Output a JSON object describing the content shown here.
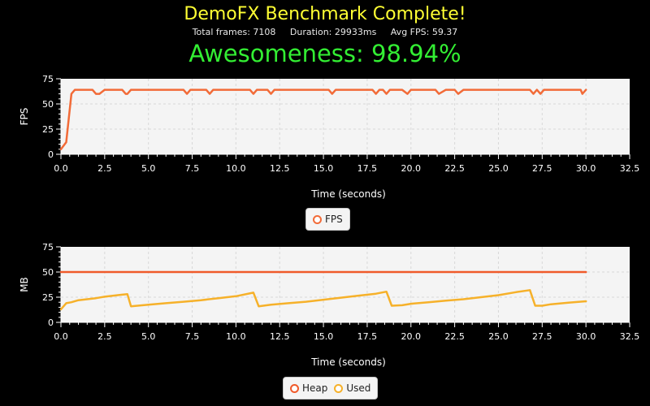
{
  "header": {
    "title": "DemoFX Benchmark Complete!",
    "stats": "Total frames: 7108     Duration: 29933ms     Avg FPS: 59.37",
    "awesomeness": "Awesomeness: 98.94%"
  },
  "colors": {
    "fps": "#f26b38",
    "heap": "#f05a2a",
    "used": "#f6b12a",
    "plot_bg": "#f4f4f4",
    "grid": "#d8d8d8",
    "title": "#ffff33",
    "score": "#33ee33"
  },
  "chart_data": [
    {
      "type": "line",
      "xlabel": "Time (seconds)",
      "ylabel": "FPS",
      "xlim": [
        0,
        32.5
      ],
      "ylim": [
        0,
        75
      ],
      "xticks": [
        "0.0",
        "2.5",
        "5.0",
        "7.5",
        "10.0",
        "12.5",
        "15.0",
        "17.5",
        "20.0",
        "22.5",
        "25.0",
        "27.5",
        "30.0",
        "32.5"
      ],
      "yticks": [
        "0",
        "25",
        "50",
        "75"
      ],
      "grid": true,
      "legend_position": "bottom-center",
      "series": [
        {
          "name": "FPS",
          "x": [
            0,
            0.3,
            0.6,
            0.8,
            1.0,
            1.2,
            1.5,
            1.8,
            2.0,
            2.2,
            2.5,
            3.0,
            3.5,
            3.7,
            3.8,
            4.0,
            5.0,
            6.0,
            7.0,
            7.2,
            7.4,
            8.0,
            8.3,
            8.5,
            8.7,
            9.0,
            10.0,
            10.8,
            11.0,
            11.2,
            11.5,
            11.8,
            12.0,
            12.2,
            12.5,
            13.0,
            14.0,
            15.0,
            15.3,
            15.5,
            15.7,
            16.0,
            17.0,
            17.8,
            18.0,
            18.2,
            18.4,
            18.6,
            18.8,
            19.0,
            19.5,
            19.8,
            20.0,
            20.5,
            21.0,
            21.2,
            21.4,
            21.6,
            22.0,
            22.3,
            22.5,
            22.7,
            23.0,
            24.0,
            25.0,
            26.0,
            26.8,
            27.0,
            27.2,
            27.4,
            27.6,
            28.0,
            29.0,
            29.7,
            29.8,
            30.0
          ],
          "values": [
            5,
            12,
            60,
            64,
            64,
            64,
            64,
            64,
            60,
            60,
            64,
            64,
            64,
            60,
            60,
            64,
            64,
            64,
            64,
            60,
            64,
            64,
            64,
            60,
            64,
            64,
            64,
            64,
            60,
            64,
            64,
            64,
            60,
            64,
            64,
            64,
            64,
            64,
            64,
            60,
            64,
            64,
            64,
            64,
            60,
            64,
            64,
            60,
            64,
            64,
            64,
            60,
            64,
            64,
            64,
            64,
            64,
            60,
            64,
            64,
            64,
            60,
            64,
            64,
            64,
            64,
            64,
            60,
            64,
            60,
            64,
            64,
            64,
            64,
            60,
            64
          ]
        }
      ]
    },
    {
      "type": "line",
      "xlabel": "Time (seconds)",
      "ylabel": "MB",
      "xlim": [
        0,
        32.5
      ],
      "ylim": [
        0,
        75
      ],
      "xticks": [
        "0.0",
        "2.5",
        "5.0",
        "7.5",
        "10.0",
        "12.5",
        "15.0",
        "17.5",
        "20.0",
        "22.5",
        "25.0",
        "27.5",
        "30.0",
        "32.5"
      ],
      "yticks": [
        "0",
        "25",
        "50",
        "75"
      ],
      "grid": true,
      "legend_position": "bottom-center",
      "series": [
        {
          "name": "Heap",
          "x": [
            0,
            30
          ],
          "values": [
            50,
            50
          ]
        },
        {
          "name": "Used",
          "x": [
            0,
            0.3,
            0.6,
            1.0,
            1.5,
            2.0,
            2.5,
            3.0,
            3.5,
            3.8,
            4.0,
            5.0,
            6.0,
            7.0,
            8.0,
            9.0,
            10.0,
            11.0,
            11.3,
            12.0,
            13.0,
            14.0,
            15.0,
            16.0,
            17.0,
            18.0,
            18.6,
            18.9,
            19.5,
            20.0,
            21.0,
            22.0,
            23.0,
            24.0,
            25.0,
            26.0,
            26.8,
            27.1,
            27.5,
            28.0,
            29.0,
            30.0
          ],
          "values": [
            13,
            19,
            20,
            22,
            23,
            24,
            25.5,
            26.5,
            27.5,
            28,
            16,
            17.5,
            19,
            20.5,
            22,
            24,
            26,
            29.5,
            16,
            17.5,
            19,
            20.5,
            22.5,
            24.5,
            26.5,
            28.5,
            30.5,
            16.5,
            17,
            18.5,
            20,
            21.5,
            23,
            25,
            27,
            30,
            32,
            16.5,
            16.5,
            18,
            19.5,
            21
          ]
        }
      ]
    }
  ]
}
